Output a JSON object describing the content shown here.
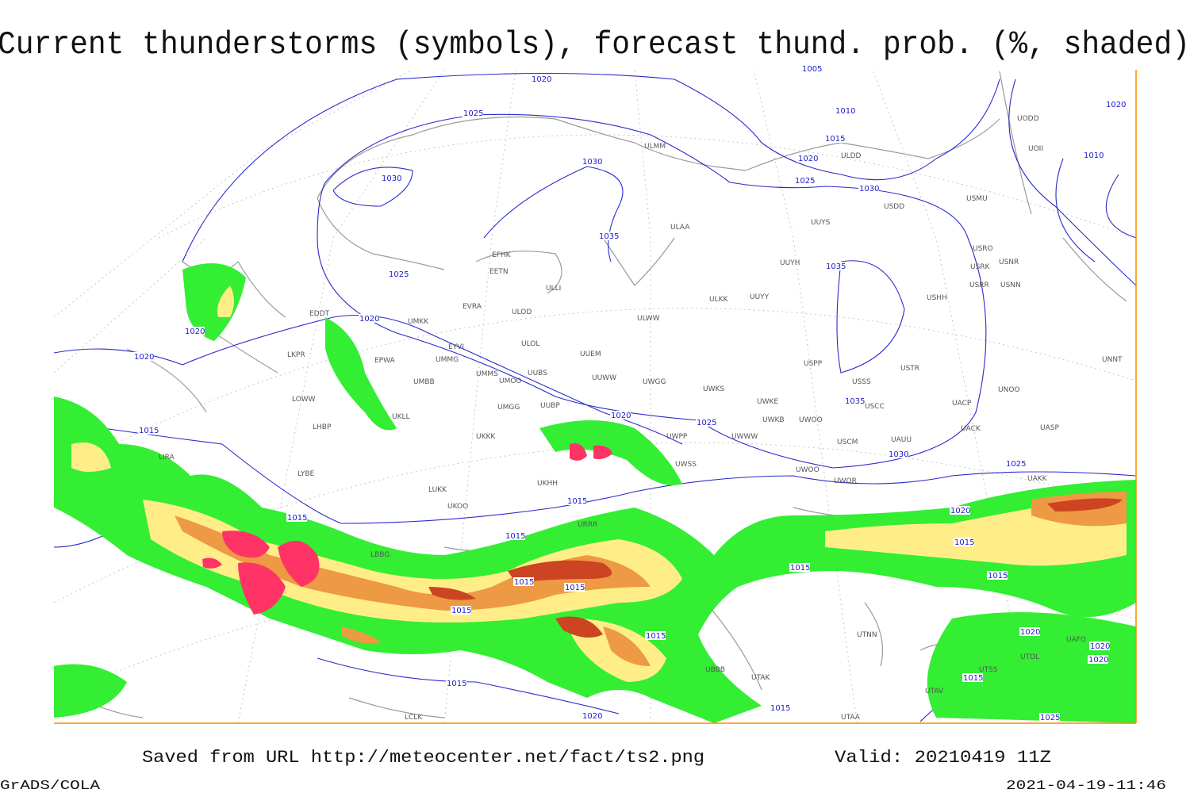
{
  "header": {
    "title": "Current thunderstorms (symbols), forecast thund. prob. (%, shaded)"
  },
  "map": {
    "stations": [
      "ULMM",
      "ULDD",
      "UODD",
      "UOII",
      "USMU",
      "USDD",
      "ULAA",
      "UUYS",
      "USRO",
      "USRK",
      "USNR",
      "USRR",
      "USNN",
      "UUYH",
      "EFHK",
      "EETN",
      "ULLI",
      "ULKK",
      "UUYY",
      "USHH",
      "EVRA",
      "ULOD",
      "UMKK",
      "ULWW",
      "EYVI",
      "ULOL",
      "UUEM",
      "EPWA",
      "UMMG",
      "USPP",
      "USTR",
      "UMMS",
      "UUBS",
      "UMOO",
      "UUWW",
      "UWGG",
      "UWKS",
      "USSS",
      "UNOO",
      "UMBB",
      "UNNT",
      "UKLL",
      "UUBP",
      "UMGG",
      "UWKE",
      "USCC",
      "UACP",
      "UWKB",
      "UWOO",
      "UKKK",
      "UWPP",
      "UWWW",
      "USCM",
      "UAUU",
      "UACK",
      "UASP",
      "UWSS",
      "UWOO",
      "UWOR",
      "UAKK",
      "EDDT",
      "LKPR",
      "LOWW",
      "LHBP",
      "LIRA",
      "LYBE",
      "LUKK",
      "UKOO",
      "UKHH",
      "URRR",
      "UTNN",
      "LBBG",
      "UTAK",
      "UTAV",
      "UTAA",
      "UTSS",
      "UTDL",
      "UAFO",
      "LCLK",
      "UBBB"
    ],
    "isobar_labels": [
      1020,
      1025,
      1010,
      1015,
      1020,
      1025,
      1030,
      1030,
      1030,
      1035,
      1035,
      1025,
      1020,
      1020,
      1020,
      1015,
      1035,
      1030,
      1025,
      1020,
      1025,
      1020,
      1015,
      1015,
      1015,
      1015,
      1015,
      1015,
      1015,
      1015,
      1015,
      1015,
      1015,
      1020,
      1015,
      1020,
      1020,
      1020,
      1015,
      1025,
      1010,
      1020,
      1005
    ]
  },
  "footer": {
    "source": "Saved from URL http://meteocenter.net/fact/ts2.png",
    "valid": "Valid: 20210419 11Z",
    "software": "GrADS/COLA",
    "timestamp": "2021-04-19-11:46"
  }
}
